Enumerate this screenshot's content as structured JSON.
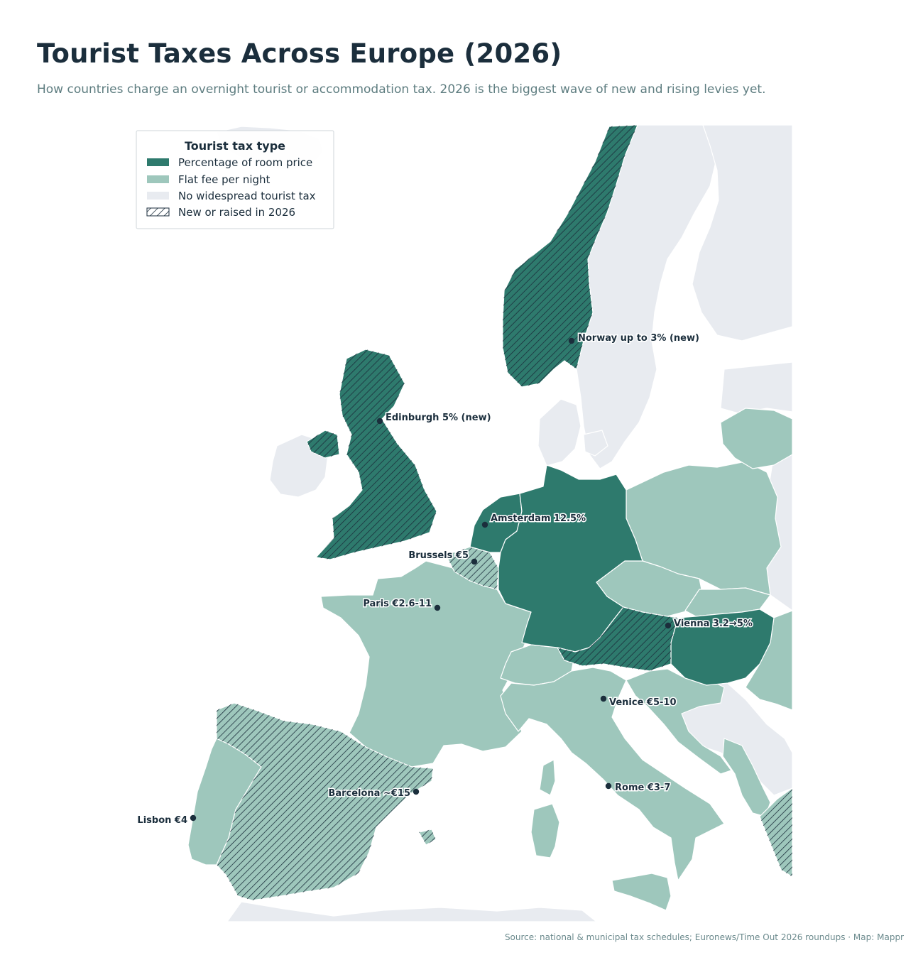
{
  "title": "Tourist Taxes Across Europe (2026)",
  "subtitle": "How countries charge an overnight tourist or accommodation tax. 2026 is the biggest wave of new and rising levies yet.",
  "source": "Source: national & municipal tax schedules; Euronews/Time Out 2026 roundups · Map: Mappr",
  "colors": {
    "percentage": "#2e7a6d",
    "flat": "#9ec7bc",
    "none": "#e8ebf0",
    "hatch": "#1b2e3c",
    "text": "#1b2e3c"
  },
  "legend": {
    "title": "Tourist tax type",
    "items": [
      {
        "label": "Percentage of room price",
        "swatch": "percentage"
      },
      {
        "label": "Flat fee per night",
        "swatch": "flat"
      },
      {
        "label": "No widespread tourist tax",
        "swatch": "none"
      },
      {
        "label": "New or raised in 2026",
        "swatch": "hatch"
      }
    ]
  },
  "cities": [
    {
      "label": "Norway up to 3% (new)"
    },
    {
      "label": "Edinburgh 5% (new)"
    },
    {
      "label": "Amsterdam 12.5%"
    },
    {
      "label": "Brussels €5"
    },
    {
      "label": "Paris €2.6-11"
    },
    {
      "label": "Vienna 3.2→5%"
    },
    {
      "label": "Venice €5-10"
    },
    {
      "label": "Barcelona ~€15"
    },
    {
      "label": "Rome €3-7"
    },
    {
      "label": "Lisbon €4"
    }
  ],
  "countries": [
    {
      "name": "Norway",
      "tax_type": "percentage",
      "new_2026": true
    },
    {
      "name": "United Kingdom",
      "tax_type": "percentage",
      "new_2026": true
    },
    {
      "name": "Netherlands",
      "tax_type": "percentage",
      "new_2026": false
    },
    {
      "name": "Germany",
      "tax_type": "percentage",
      "new_2026": false
    },
    {
      "name": "Austria",
      "tax_type": "percentage",
      "new_2026": true
    },
    {
      "name": "Hungary",
      "tax_type": "percentage",
      "new_2026": false
    },
    {
      "name": "Belgium",
      "tax_type": "flat",
      "new_2026": true
    },
    {
      "name": "France",
      "tax_type": "flat",
      "new_2026": false
    },
    {
      "name": "Spain",
      "tax_type": "flat",
      "new_2026": true
    },
    {
      "name": "Portugal",
      "tax_type": "flat",
      "new_2026": false
    },
    {
      "name": "Italy",
      "tax_type": "flat",
      "new_2026": false
    },
    {
      "name": "Switzerland",
      "tax_type": "flat",
      "new_2026": false
    },
    {
      "name": "Poland",
      "tax_type": "flat",
      "new_2026": false
    },
    {
      "name": "Czechia",
      "tax_type": "flat",
      "new_2026": false
    },
    {
      "name": "Slovakia",
      "tax_type": "flat",
      "new_2026": false
    },
    {
      "name": "Slovenia",
      "tax_type": "flat",
      "new_2026": false
    },
    {
      "name": "Croatia",
      "tax_type": "flat",
      "new_2026": false
    },
    {
      "name": "Lithuania",
      "tax_type": "flat",
      "new_2026": false
    },
    {
      "name": "Romania",
      "tax_type": "flat",
      "new_2026": false
    },
    {
      "name": "Greece",
      "tax_type": "flat",
      "new_2026": true
    },
    {
      "name": "Montenegro",
      "tax_type": "flat",
      "new_2026": false
    },
    {
      "name": "Sweden",
      "tax_type": "none",
      "new_2026": false
    },
    {
      "name": "Finland",
      "tax_type": "none",
      "new_2026": false
    },
    {
      "name": "Denmark",
      "tax_type": "none",
      "new_2026": false
    },
    {
      "name": "Ireland",
      "tax_type": "none",
      "new_2026": false
    },
    {
      "name": "Iceland",
      "tax_type": "none",
      "new_2026": false
    },
    {
      "name": "Luxembourg",
      "tax_type": "none",
      "new_2026": false
    },
    {
      "name": "Serbia",
      "tax_type": "none",
      "new_2026": false
    },
    {
      "name": "Bosnia and Herzegovina",
      "tax_type": "none",
      "new_2026": false
    }
  ]
}
